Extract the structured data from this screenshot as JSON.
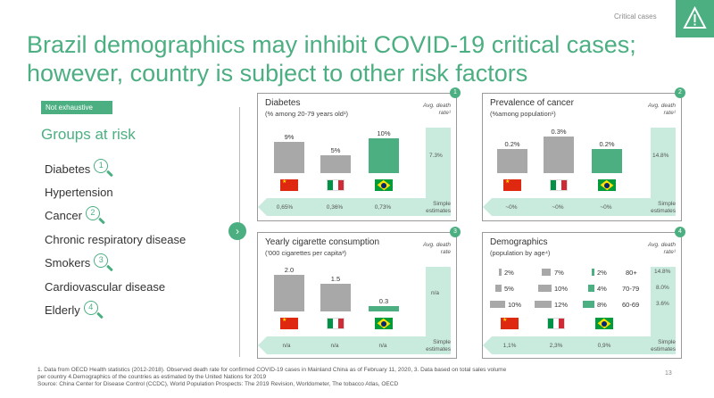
{
  "header": {
    "section_label": "Critical cases",
    "warning_icon": "warning-triangle-icon",
    "title": "Brazil demographics may inhibit COVID-19 critical cases; however, country is subject to other risk factors"
  },
  "left": {
    "badge": "Not exhaustive",
    "groups_title": "Groups at risk",
    "items": [
      {
        "label": "Diabetes",
        "ref": "1"
      },
      {
        "label": "Hypertension",
        "ref": ""
      },
      {
        "label": "Cancer",
        "ref": "2"
      },
      {
        "label": "Chronic respiratory disease",
        "ref": ""
      },
      {
        "label": "Smokers",
        "ref": "3"
      },
      {
        "label": "Cardiovascular disease",
        "ref": ""
      },
      {
        "label": "Elderly",
        "ref": "4"
      }
    ]
  },
  "common": {
    "rate_header": "Avg. death rate",
    "estimates_label": "Simple estimates",
    "countries": [
      "China",
      "Italy",
      "Brazil"
    ]
  },
  "panels": {
    "diabetes": {
      "num": "1",
      "title": "Diabetes",
      "subtitle": "(% among 20-79 years old¹)",
      "rate_header": "Avg. death rate¹",
      "bar_labels": [
        "9%",
        "5%",
        "10%"
      ],
      "bar_values": [
        9,
        5,
        10
      ],
      "death_rate": "7.3%",
      "estimates": [
        "0,65%",
        "0,36%",
        "0,73%"
      ]
    },
    "cancer": {
      "num": "2",
      "title": "Prevalence of cancer",
      "subtitle": "(%among population¹)",
      "rate_header": "Avg. death rate¹",
      "bar_labels": [
        "0.2%",
        "0.3%",
        "0.2%"
      ],
      "bar_values": [
        0.2,
        0.3,
        0.2
      ],
      "death_rate": "14.8%",
      "estimates": [
        "~0%",
        "~0%",
        "~0%"
      ]
    },
    "cigarettes": {
      "num": "3",
      "title": "Yearly cigarette consumption",
      "subtitle": "('000 cigarettes per capita³)",
      "rate_header": "Avg. death rate",
      "bar_labels": [
        "2.0",
        "1.5",
        "0.3"
      ],
      "bar_values": [
        2.0,
        1.5,
        0.3
      ],
      "death_rate": "n/a",
      "estimates": [
        "n/a",
        "n/a",
        "n/a"
      ]
    },
    "demographics": {
      "num": "4",
      "title": "Demographics",
      "subtitle": "(population by age⁴)",
      "rate_header": "Avg. death rate¹",
      "age_groups": [
        "80+",
        "70-79",
        "60-69"
      ],
      "death_rates": [
        "14.8%",
        "8.0%",
        "3.6%"
      ],
      "china": [
        "2%",
        "5%",
        "10%"
      ],
      "china_values": [
        2,
        5,
        10
      ],
      "italy": [
        "7%",
        "10%",
        "12%"
      ],
      "italy_values": [
        7,
        10,
        12
      ],
      "brazil": [
        "2%",
        "4%",
        "8%"
      ],
      "brazil_values": [
        2,
        4,
        8
      ],
      "estimates": [
        "1,1%",
        "2,3%",
        "0,9%"
      ]
    }
  },
  "footer": {
    "footnote_line1": "1. Data from OECD Health statistics (2012-2018). Observed death rate for confirmed COVID-19 cases in Mainland China as of February 11, 2020, 3. Data based on total sales volume",
    "footnote_line2": "per country 4.Demographics of the countries as estimated by the United Nations for 2019",
    "source": "Source: China Center for Disease Control (CCDC), World Population Prospects: The 2019 Revision, Worldometer, The tobacco Atlas, OECD",
    "page_number": "13"
  }
}
